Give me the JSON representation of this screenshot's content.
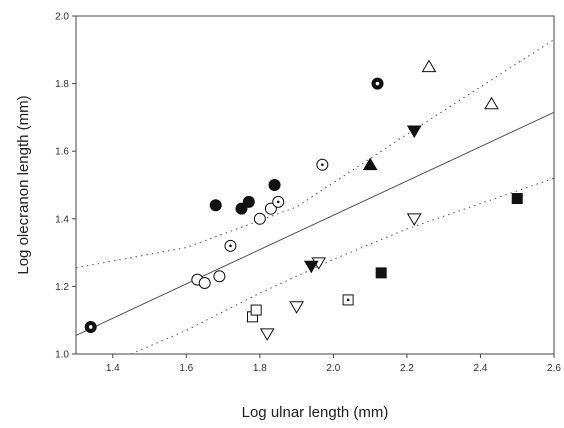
{
  "chart_data": {
    "type": "scatter",
    "title": "",
    "xlabel": "Log ulnar length (mm)",
    "ylabel": "Log olecranon length (mm)",
    "xlim": [
      1.3,
      2.6
    ],
    "ylim": [
      1.0,
      2.0
    ],
    "xticks": [
      "1.4",
      "1.6",
      "1.8",
      "2.0",
      "2.2",
      "2.4",
      "2.6"
    ],
    "yticks": [
      "1.0",
      "1.2",
      "1.4",
      "1.6",
      "1.8",
      "2.0"
    ],
    "grid": false,
    "legend": "none",
    "points": [
      {
        "marker": "filled-circle-dot",
        "x": 1.34,
        "y": 1.08
      },
      {
        "marker": "open-circle",
        "x": 1.63,
        "y": 1.22
      },
      {
        "marker": "open-circle",
        "x": 1.65,
        "y": 1.21
      },
      {
        "marker": "open-circle",
        "x": 1.69,
        "y": 1.23
      },
      {
        "marker": "open-circle-dot",
        "x": 1.72,
        "y": 1.32
      },
      {
        "marker": "open-circle",
        "x": 1.8,
        "y": 1.4
      },
      {
        "marker": "open-circle",
        "x": 1.83,
        "y": 1.43
      },
      {
        "marker": "open-circle-dot",
        "x": 1.85,
        "y": 1.45
      },
      {
        "marker": "open-circle-dot",
        "x": 1.97,
        "y": 1.56
      },
      {
        "marker": "filled-circle",
        "x": 1.68,
        "y": 1.44
      },
      {
        "marker": "filled-circle",
        "x": 1.75,
        "y": 1.43
      },
      {
        "marker": "filled-circle",
        "x": 1.77,
        "y": 1.45
      },
      {
        "marker": "filled-circle",
        "x": 1.84,
        "y": 1.5
      },
      {
        "marker": "filled-circle-dot",
        "x": 2.12,
        "y": 1.8
      },
      {
        "marker": "open-square",
        "x": 1.78,
        "y": 1.11
      },
      {
        "marker": "open-square",
        "x": 1.79,
        "y": 1.13
      },
      {
        "marker": "open-square-dot",
        "x": 2.04,
        "y": 1.16
      },
      {
        "marker": "filled-square",
        "x": 2.13,
        "y": 1.24
      },
      {
        "marker": "filled-square",
        "x": 2.5,
        "y": 1.46
      },
      {
        "marker": "open-triangle-down",
        "x": 1.82,
        "y": 1.06
      },
      {
        "marker": "open-triangle-down",
        "x": 1.9,
        "y": 1.14
      },
      {
        "marker": "open-triangle-down",
        "x": 1.96,
        "y": 1.27
      },
      {
        "marker": "open-triangle-down",
        "x": 2.22,
        "y": 1.4
      },
      {
        "marker": "filled-triangle-down",
        "x": 1.94,
        "y": 1.26
      },
      {
        "marker": "filled-triangle-down",
        "x": 2.22,
        "y": 1.66
      },
      {
        "marker": "filled-triangle-up",
        "x": 2.1,
        "y": 1.56
      },
      {
        "marker": "open-triangle-up",
        "x": 2.26,
        "y": 1.85
      },
      {
        "marker": "open-triangle-up",
        "x": 2.43,
        "y": 1.74
      }
    ],
    "fit_line": {
      "style": "solid",
      "x": [
        1.3,
        2.6
      ],
      "y": [
        1.055,
        1.715
      ]
    },
    "upper_band": {
      "style": "dotted",
      "x": [
        1.3,
        1.6,
        1.9,
        2.2,
        2.6
      ],
      "y": [
        1.255,
        1.315,
        1.435,
        1.65,
        1.93
      ]
    },
    "lower_band": {
      "style": "dotted",
      "x": [
        1.45,
        1.6,
        1.8,
        2.0,
        2.2,
        2.6
      ],
      "y": [
        1.0,
        1.07,
        1.18,
        1.28,
        1.37,
        1.52
      ]
    }
  }
}
